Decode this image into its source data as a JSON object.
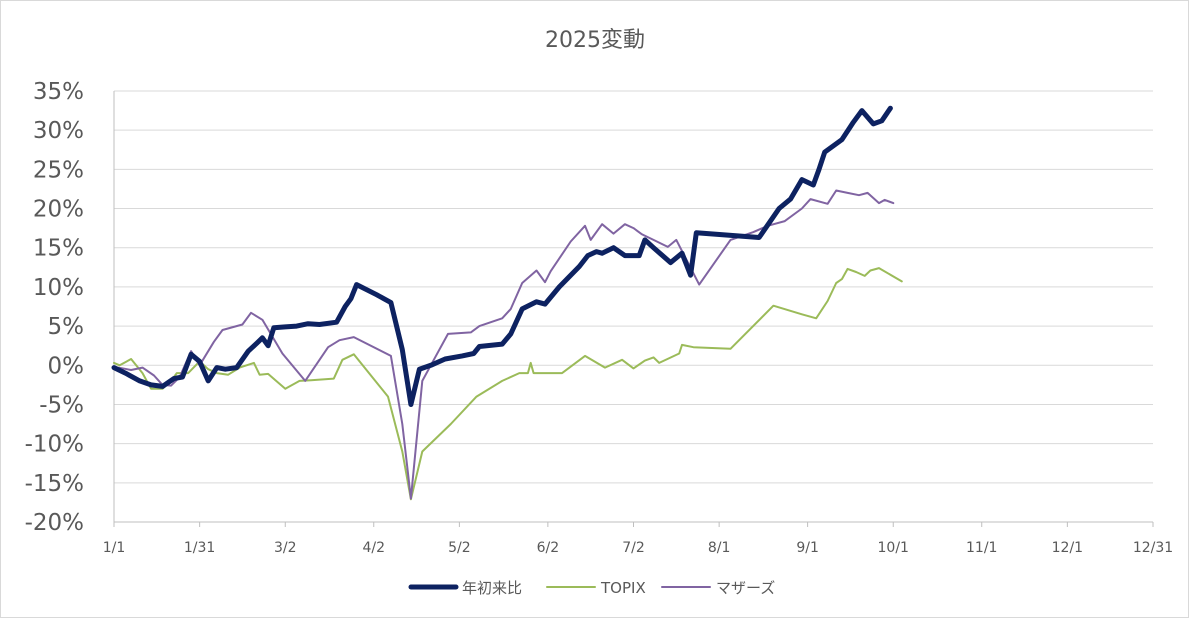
{
  "chart_data": {
    "type": "line",
    "title": "2025変動",
    "xlabel": "",
    "ylabel": "",
    "ylim": [
      -0.2,
      0.35
    ],
    "xlim": [
      "2025-01-01",
      "2025-12-31"
    ],
    "yticks": [
      0.35,
      0.3,
      0.25,
      0.2,
      0.15,
      0.1,
      0.05,
      0.0,
      -0.05,
      -0.1,
      -0.15,
      -0.2
    ],
    "ytick_labels": [
      "35%",
      "30%",
      "25%",
      "20%",
      "15%",
      "10%",
      "5%",
      "0%",
      "-5%",
      "-10%",
      "-15%",
      "-20%"
    ],
    "xticks": [
      "2025-01-01",
      "2025-01-31",
      "2025-03-02",
      "2025-04-02",
      "2025-05-02",
      "2025-06-02",
      "2025-07-02",
      "2025-08-01",
      "2025-09-01",
      "2025-10-01",
      "2025-11-01",
      "2025-12-01",
      "2025-12-31"
    ],
    "xtick_labels": [
      "1/1",
      "1/31",
      "3/2",
      "4/2",
      "5/2",
      "6/2",
      "7/2",
      "8/1",
      "9/1",
      "10/1",
      "11/1",
      "12/1",
      "12/31"
    ],
    "grid": true,
    "legend_position": "bottom",
    "series": [
      {
        "name": "年初来比",
        "color": "#0d2261",
        "width": 5,
        "points": [
          [
            "2025-01-01",
            -0.003
          ],
          [
            "2025-01-05",
            -0.01
          ],
          [
            "2025-01-10",
            -0.02
          ],
          [
            "2025-01-14",
            -0.025
          ],
          [
            "2025-01-18",
            -0.027
          ],
          [
            "2025-01-22",
            -0.017
          ],
          [
            "2025-01-25",
            -0.015
          ],
          [
            "2025-01-28",
            0.014
          ],
          [
            "2025-01-31",
            0.005
          ],
          [
            "2025-02-03",
            -0.02
          ],
          [
            "2025-02-06",
            -0.003
          ],
          [
            "2025-02-09",
            -0.005
          ],
          [
            "2025-02-13",
            -0.003
          ],
          [
            "2025-02-17",
            0.018
          ],
          [
            "2025-02-20",
            0.028
          ],
          [
            "2025-02-22",
            0.035
          ],
          [
            "2025-02-24",
            0.025
          ],
          [
            "2025-02-26",
            0.048
          ],
          [
            "2025-03-02",
            0.049
          ],
          [
            "2025-03-06",
            0.05
          ],
          [
            "2025-03-10",
            0.053
          ],
          [
            "2025-03-14",
            0.052
          ],
          [
            "2025-03-20",
            0.055
          ],
          [
            "2025-03-23",
            0.075
          ],
          [
            "2025-03-25",
            0.085
          ],
          [
            "2025-03-27",
            0.103
          ],
          [
            "2025-04-03",
            0.09
          ],
          [
            "2025-04-08",
            0.08
          ],
          [
            "2025-04-12",
            0.02
          ],
          [
            "2025-04-15",
            -0.05
          ],
          [
            "2025-04-18",
            -0.005
          ],
          [
            "2025-04-22",
            0.0
          ],
          [
            "2025-04-27",
            0.008
          ],
          [
            "2025-05-03",
            0.012
          ],
          [
            "2025-05-07",
            0.015
          ],
          [
            "2025-05-09",
            0.024
          ],
          [
            "2025-05-17",
            0.027
          ],
          [
            "2025-05-20",
            0.04
          ],
          [
            "2025-05-24",
            0.072
          ],
          [
            "2025-05-29",
            0.081
          ],
          [
            "2025-06-01",
            0.078
          ],
          [
            "2025-06-06",
            0.1
          ],
          [
            "2025-06-13",
            0.126
          ],
          [
            "2025-06-16",
            0.14
          ],
          [
            "2025-06-19",
            0.145
          ],
          [
            "2025-06-21",
            0.143
          ],
          [
            "2025-06-25",
            0.15
          ],
          [
            "2025-06-29",
            0.14
          ],
          [
            "2025-07-04",
            0.14
          ],
          [
            "2025-07-06",
            0.16
          ],
          [
            "2025-07-09",
            0.15
          ],
          [
            "2025-07-15",
            0.131
          ],
          [
            "2025-07-19",
            0.143
          ],
          [
            "2025-07-22",
            0.115
          ],
          [
            "2025-07-24",
            0.169
          ],
          [
            "2025-08-15",
            0.163
          ],
          [
            "2025-08-22",
            0.2
          ],
          [
            "2025-08-26",
            0.212
          ],
          [
            "2025-08-30",
            0.237
          ],
          [
            "2025-09-03",
            0.23
          ],
          [
            "2025-09-05",
            0.25
          ],
          [
            "2025-09-07",
            0.272
          ],
          [
            "2025-09-13",
            0.288
          ],
          [
            "2025-09-17",
            0.31
          ],
          [
            "2025-09-20",
            0.325
          ],
          [
            "2025-09-24",
            0.308
          ],
          [
            "2025-09-27",
            0.312
          ],
          [
            "2025-09-30",
            0.328
          ]
        ]
      },
      {
        "name": "TOPIX",
        "color": "#9bbb59",
        "width": 2,
        "points": [
          [
            "2025-01-01",
            0.003
          ],
          [
            "2025-01-03",
            0.0
          ],
          [
            "2025-01-07",
            0.008
          ],
          [
            "2025-01-11",
            -0.01
          ],
          [
            "2025-01-14",
            -0.03
          ],
          [
            "2025-01-18",
            -0.03
          ],
          [
            "2025-01-21",
            -0.02
          ],
          [
            "2025-01-23",
            -0.01
          ],
          [
            "2025-01-27",
            -0.01
          ],
          [
            "2025-01-31",
            0.005
          ],
          [
            "2025-02-03",
            -0.005
          ],
          [
            "2025-02-06",
            -0.01
          ],
          [
            "2025-02-10",
            -0.012
          ],
          [
            "2025-02-14",
            -0.003
          ],
          [
            "2025-02-19",
            0.003
          ],
          [
            "2025-02-21",
            -0.012
          ],
          [
            "2025-02-24",
            -0.011
          ],
          [
            "2025-03-02",
            -0.03
          ],
          [
            "2025-03-07",
            -0.02
          ],
          [
            "2025-03-11",
            -0.019
          ],
          [
            "2025-03-19",
            -0.017
          ],
          [
            "2025-03-22",
            0.007
          ],
          [
            "2025-03-26",
            0.014
          ],
          [
            "2025-04-07",
            -0.04
          ],
          [
            "2025-04-12",
            -0.11
          ],
          [
            "2025-04-15",
            -0.171
          ],
          [
            "2025-04-19",
            -0.11
          ],
          [
            "2025-04-29",
            -0.075
          ],
          [
            "2025-05-08",
            -0.04
          ],
          [
            "2025-05-17",
            -0.02
          ],
          [
            "2025-05-23",
            -0.01
          ],
          [
            "2025-05-26",
            -0.01
          ],
          [
            "2025-05-27",
            0.003
          ],
          [
            "2025-05-28",
            -0.01
          ],
          [
            "2025-06-02",
            -0.01
          ],
          [
            "2025-06-07",
            -0.01
          ],
          [
            "2025-06-15",
            0.012
          ],
          [
            "2025-06-22",
            -0.003
          ],
          [
            "2025-06-28",
            0.007
          ],
          [
            "2025-07-02",
            -0.004
          ],
          [
            "2025-07-06",
            0.006
          ],
          [
            "2025-07-09",
            0.01
          ],
          [
            "2025-07-11",
            0.003
          ],
          [
            "2025-07-18",
            0.015
          ],
          [
            "2025-07-19",
            0.026
          ],
          [
            "2025-07-23",
            0.023
          ],
          [
            "2025-08-05",
            0.021
          ],
          [
            "2025-08-20",
            0.076
          ],
          [
            "2025-08-30",
            0.065
          ],
          [
            "2025-09-04",
            0.06
          ],
          [
            "2025-09-08",
            0.082
          ],
          [
            "2025-09-11",
            0.105
          ],
          [
            "2025-09-13",
            0.11
          ],
          [
            "2025-09-15",
            0.123
          ],
          [
            "2025-09-18",
            0.119
          ],
          [
            "2025-09-21",
            0.114
          ],
          [
            "2025-09-23",
            0.121
          ],
          [
            "2025-09-26",
            0.124
          ],
          [
            "2025-10-04",
            0.107
          ]
        ]
      },
      {
        "name": "マザーズ",
        "color": "#8064a2",
        "width": 2,
        "points": [
          [
            "2025-01-01",
            -0.002
          ],
          [
            "2025-01-07",
            -0.006
          ],
          [
            "2025-01-11",
            -0.003
          ],
          [
            "2025-01-15",
            -0.013
          ],
          [
            "2025-01-18",
            -0.025
          ],
          [
            "2025-01-21",
            -0.026
          ],
          [
            "2025-01-24",
            -0.015
          ],
          [
            "2025-01-28",
            0.018
          ],
          [
            "2025-01-31",
            0.0
          ],
          [
            "2025-02-05",
            0.03
          ],
          [
            "2025-02-08",
            0.045
          ],
          [
            "2025-02-15",
            0.052
          ],
          [
            "2025-02-18",
            0.067
          ],
          [
            "2025-02-22",
            0.058
          ],
          [
            "2025-03-01",
            0.015
          ],
          [
            "2025-03-09",
            -0.02
          ],
          [
            "2025-03-17",
            0.023
          ],
          [
            "2025-03-21",
            0.032
          ],
          [
            "2025-03-26",
            0.036
          ],
          [
            "2025-04-08",
            0.012
          ],
          [
            "2025-04-12",
            -0.075
          ],
          [
            "2025-04-15",
            -0.17
          ],
          [
            "2025-04-19",
            -0.02
          ],
          [
            "2025-04-22",
            0.0
          ],
          [
            "2025-04-28",
            0.04
          ],
          [
            "2025-05-06",
            0.042
          ],
          [
            "2025-05-09",
            0.05
          ],
          [
            "2025-05-17",
            0.06
          ],
          [
            "2025-05-20",
            0.072
          ],
          [
            "2025-05-24",
            0.105
          ],
          [
            "2025-05-29",
            0.121
          ],
          [
            "2025-06-01",
            0.106
          ],
          [
            "2025-06-03",
            0.12
          ],
          [
            "2025-06-10",
            0.158
          ],
          [
            "2025-06-15",
            0.178
          ],
          [
            "2025-06-17",
            0.16
          ],
          [
            "2025-06-21",
            0.18
          ],
          [
            "2025-06-25",
            0.168
          ],
          [
            "2025-06-29",
            0.18
          ],
          [
            "2025-07-02",
            0.175
          ],
          [
            "2025-07-05",
            0.167
          ],
          [
            "2025-07-09",
            0.16
          ],
          [
            "2025-07-14",
            0.151
          ],
          [
            "2025-07-17",
            0.16
          ],
          [
            "2025-07-25",
            0.103
          ],
          [
            "2025-08-05",
            0.16
          ],
          [
            "2025-08-13",
            0.17
          ],
          [
            "2025-08-18",
            0.178
          ],
          [
            "2025-08-24",
            0.184
          ],
          [
            "2025-08-30",
            0.2
          ],
          [
            "2025-09-02",
            0.212
          ],
          [
            "2025-09-08",
            0.206
          ],
          [
            "2025-09-11",
            0.223
          ],
          [
            "2025-09-15",
            0.22
          ],
          [
            "2025-09-19",
            0.217
          ],
          [
            "2025-09-22",
            0.22
          ],
          [
            "2025-09-26",
            0.207
          ],
          [
            "2025-09-28",
            0.211
          ],
          [
            "2025-10-01",
            0.207
          ]
        ]
      }
    ]
  }
}
